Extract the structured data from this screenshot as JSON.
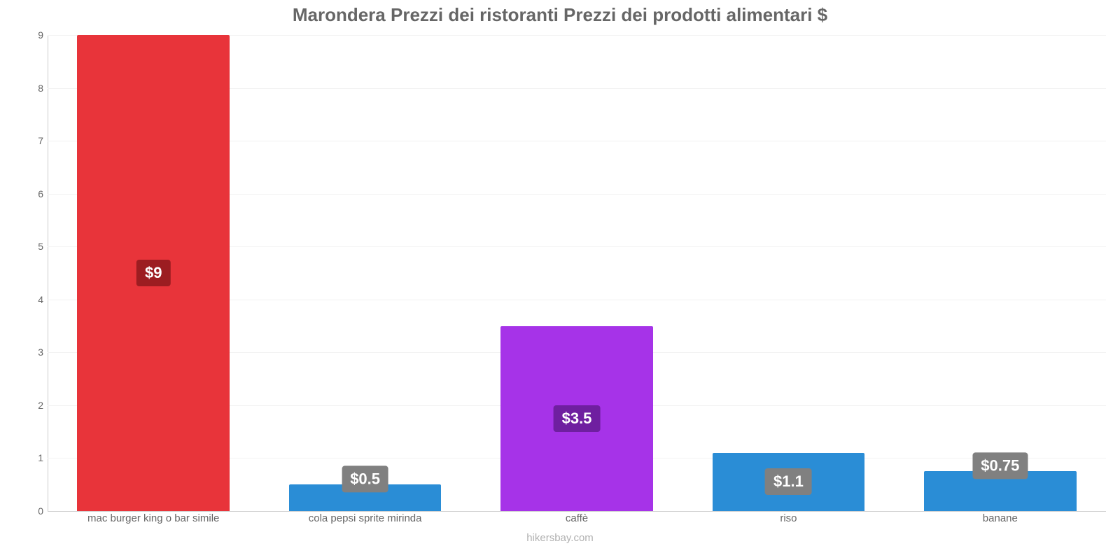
{
  "chart": {
    "type": "bar",
    "title": "Marondera Prezzi dei ristoranti Prezzi dei prodotti alimentari $",
    "title_color": "#666666",
    "title_fontsize": 26,
    "credit": "hikersbay.com",
    "credit_color": "#b0b0b0",
    "background_color": "#ffffff",
    "grid_color": "#f2f2f2",
    "axis_line_color": "#cccccc",
    "axis_label_color": "#666666",
    "axis_label_fontsize": 14,
    "ylim": [
      0,
      9
    ],
    "ytick_step": 1,
    "yticks": [
      0,
      1,
      2,
      3,
      4,
      5,
      6,
      7,
      8,
      9
    ],
    "bar_width_ratio": 0.72,
    "value_badge_fontsize": 22,
    "value_badge_text_color": "#ffffff",
    "categories": [
      "mac burger king o bar simile",
      "cola pepsi sprite mirinda",
      "caffè",
      "riso",
      "banane"
    ],
    "values": [
      9,
      0.5,
      3.5,
      1.1,
      0.75
    ],
    "value_labels": [
      "$9",
      "$0.5",
      "$3.5",
      "$1.1",
      "$0.75"
    ],
    "bar_colors": [
      "#e8343a",
      "#2a8dd6",
      "#a633e8",
      "#2a8dd6",
      "#2a8dd6"
    ],
    "value_badge_colors": [
      "#9c1d21",
      "#808080",
      "#6f1fa0",
      "#808080",
      "#808080"
    ]
  }
}
